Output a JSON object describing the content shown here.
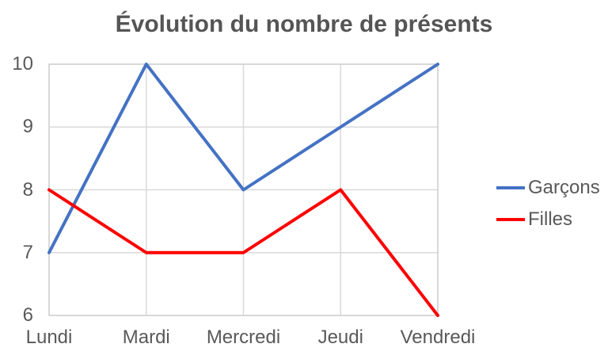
{
  "chart": {
    "title": "Évolution du nombre de présents"
  },
  "chart_data": {
    "type": "line",
    "title": "Évolution du nombre de présents",
    "categories": [
      "Lundi",
      "Mardi",
      "Mercredi",
      "Jeudi",
      "Vendredi"
    ],
    "series": [
      {
        "name": "Garçons",
        "color": "#4472C4",
        "values": [
          7,
          10,
          8,
          9,
          10
        ]
      },
      {
        "name": "Filles",
        "color": "#FF0000",
        "values": [
          8,
          7,
          7,
          8,
          6
        ]
      }
    ],
    "xlabel": "",
    "ylabel": "",
    "ylim": [
      6,
      10
    ],
    "yticks": [
      6,
      7,
      8,
      9,
      10
    ],
    "grid": true,
    "legend_position": "right",
    "colors": {
      "gridline": "#D9D9D9",
      "plot_border": "#D2D2D2",
      "axis_text": "#595959",
      "title_text": "#555555",
      "background": "#FFFFFF"
    }
  }
}
